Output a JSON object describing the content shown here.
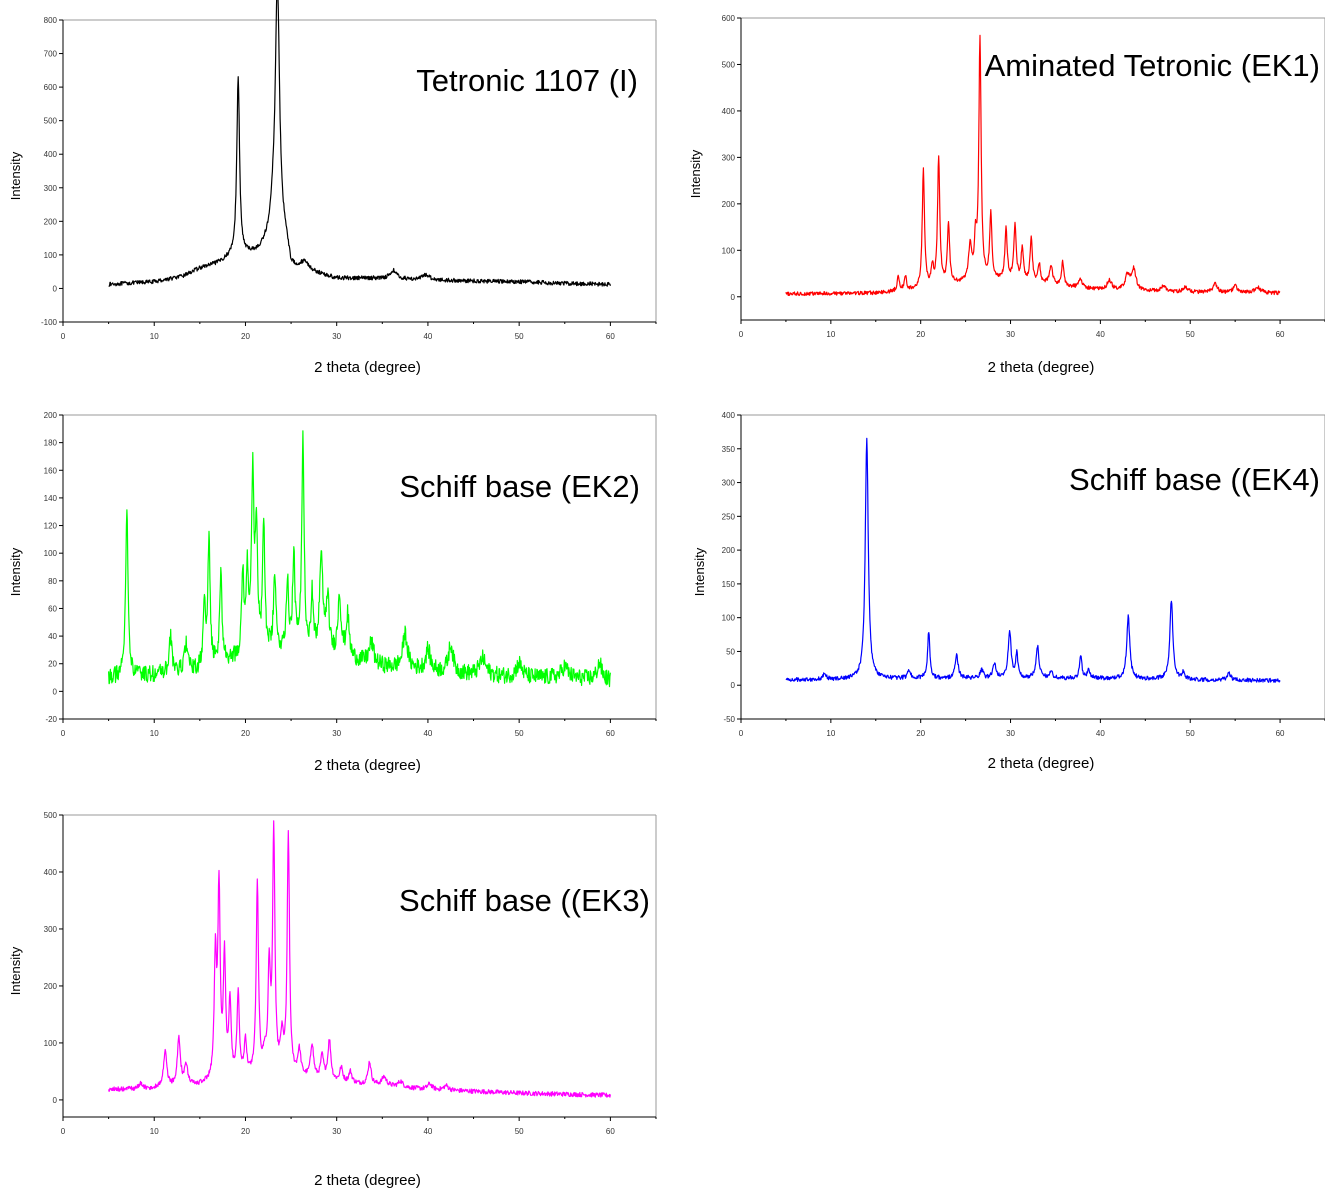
{
  "chart_data": [
    {
      "type": "line",
      "title": "Tetronic 1107 (I)",
      "xlabel": "2 theta (degree)",
      "ylabel": "Intensity",
      "xlim": [
        0,
        65
      ],
      "ylim": [
        -100,
        800
      ],
      "xticks": [
        0,
        10,
        20,
        30,
        40,
        50,
        60
      ],
      "yticks": [
        -100,
        0,
        100,
        200,
        300,
        400,
        500,
        600,
        700,
        800
      ],
      "color": "#000000",
      "series": [
        {
          "baseline": [
            [
              5,
              12
            ],
            [
              10,
              20
            ],
            [
              13,
              35
            ],
            [
              15,
              60
            ],
            [
              17,
              75
            ],
            [
              18.5,
              95
            ],
            [
              20,
              100
            ],
            [
              21.5,
              110
            ],
            [
              22.5,
              150
            ],
            [
              23,
              200
            ],
            [
              24.5,
              130
            ],
            [
              25,
              60
            ],
            [
              27,
              50
            ],
            [
              30,
              30
            ],
            [
              35,
              30
            ],
            [
              40,
              25
            ],
            [
              45,
              22
            ],
            [
              50,
              20
            ],
            [
              55,
              15
            ],
            [
              60,
              12
            ]
          ],
          "peaks": [
            [
              19.2,
              536,
              0.18
            ],
            [
              23.5,
              742,
              0.28
            ],
            [
              26.5,
              25,
              0.5
            ],
            [
              36.2,
              25,
              0.4
            ],
            [
              39.8,
              15,
              0.5
            ]
          ],
          "noise": 6
        }
      ]
    },
    {
      "type": "line",
      "title": "Aminated Tetronic (EK1)",
      "xlabel": "2 theta (degree)",
      "ylabel": "Intensity",
      "xlim": [
        0,
        65
      ],
      "ylim": [
        -50,
        600
      ],
      "xticks": [
        0,
        10,
        20,
        30,
        40,
        50,
        60
      ],
      "yticks": [
        0,
        100,
        200,
        300,
        400,
        500,
        600
      ],
      "color": "#ff0000",
      "series": [
        {
          "baseline": [
            [
              5,
              6
            ],
            [
              15,
              8
            ],
            [
              20,
              15
            ],
            [
              25,
              30
            ],
            [
              30,
              35
            ],
            [
              35,
              25
            ],
            [
              40,
              15
            ],
            [
              45,
              12
            ],
            [
              50,
              10
            ],
            [
              55,
              8
            ],
            [
              60,
              8
            ]
          ],
          "peaks": [
            [
              17.5,
              30,
              0.15
            ],
            [
              18.3,
              30,
              0.15
            ],
            [
              20.3,
              255,
              0.15
            ],
            [
              21.3,
              40,
              0.15
            ],
            [
              22,
              275,
              0.15
            ],
            [
              23.1,
              130,
              0.15
            ],
            [
              25.5,
              75,
              0.2
            ],
            [
              26.1,
              80,
              0.15
            ],
            [
              26.6,
              520,
              0.15
            ],
            [
              27.8,
              140,
              0.15
            ],
            [
              29.5,
              110,
              0.15
            ],
            [
              30.5,
              120,
              0.15
            ],
            [
              31.3,
              70,
              0.15
            ],
            [
              32.3,
              95,
              0.15
            ],
            [
              33.2,
              40,
              0.15
            ],
            [
              34.5,
              40,
              0.2
            ],
            [
              35.8,
              50,
              0.15
            ],
            [
              37.8,
              20,
              0.2
            ],
            [
              41,
              20,
              0.3
            ],
            [
              43,
              30,
              0.3
            ],
            [
              43.7,
              45,
              0.3
            ],
            [
              47,
              12,
              0.3
            ],
            [
              49.5,
              10,
              0.3
            ],
            [
              52.8,
              18,
              0.3
            ],
            [
              55,
              15,
              0.3
            ],
            [
              57.5,
              12,
              0.4
            ]
          ],
          "noise": 4
        }
      ]
    },
    {
      "type": "line",
      "title": "Schiff base (EK2)",
      "xlabel": "2 theta (degree)",
      "ylabel": "Intensity",
      "xlim": [
        0,
        65
      ],
      "ylim": [
        -20,
        200
      ],
      "xticks": [
        0,
        10,
        20,
        30,
        40,
        50,
        60
      ],
      "yticks": [
        -20,
        0,
        20,
        40,
        60,
        80,
        100,
        120,
        140,
        160,
        180,
        200
      ],
      "color": "#00ff00",
      "series": [
        {
          "baseline": [
            [
              5,
              10
            ],
            [
              10,
              12
            ],
            [
              15,
              15
            ],
            [
              20,
              25
            ],
            [
              25,
              30
            ],
            [
              30,
              25
            ],
            [
              35,
              18
            ],
            [
              40,
              15
            ],
            [
              45,
              12
            ],
            [
              50,
              10
            ],
            [
              55,
              10
            ],
            [
              60,
              8
            ]
          ],
          "peaks": [
            [
              7,
              125,
              0.15
            ],
            [
              11.8,
              25,
              0.2
            ],
            [
              13.5,
              20,
              0.2
            ],
            [
              15.5,
              45,
              0.15
            ],
            [
              16,
              90,
              0.15
            ],
            [
              17.3,
              65,
              0.15
            ],
            [
              19.7,
              60,
              0.15
            ],
            [
              20.2,
              60,
              0.15
            ],
            [
              20.8,
              130,
              0.15
            ],
            [
              21.2,
              90,
              0.15
            ],
            [
              22,
              90,
              0.15
            ],
            [
              23.2,
              55,
              0.15
            ],
            [
              24.6,
              50,
              0.15
            ],
            [
              25.3,
              65,
              0.15
            ],
            [
              26.3,
              152,
              0.15
            ],
            [
              27.3,
              40,
              0.15
            ],
            [
              28.3,
              70,
              0.2
            ],
            [
              29,
              40,
              0.2
            ],
            [
              30.3,
              45,
              0.2
            ],
            [
              31.2,
              30,
              0.2
            ],
            [
              33.8,
              15,
              0.3
            ],
            [
              37.5,
              25,
              0.3
            ],
            [
              40,
              15,
              0.3
            ],
            [
              42.5,
              20,
              0.3
            ],
            [
              46,
              12,
              0.4
            ],
            [
              50,
              10,
              0.4
            ],
            [
              55,
              8,
              0.4
            ],
            [
              58.8,
              12,
              0.3
            ]
          ],
          "noise": 6
        }
      ]
    },
    {
      "type": "line",
      "title": "Schiff base ((EK4)",
      "xlabel": "2 theta (degree)",
      "ylabel": "Intensity",
      "xlim": [
        0,
        65
      ],
      "ylim": [
        -50,
        400
      ],
      "xticks": [
        0,
        10,
        20,
        30,
        40,
        50,
        60
      ],
      "yticks": [
        -50,
        0,
        50,
        100,
        150,
        200,
        250,
        300,
        350,
        400
      ],
      "color": "#0000ff",
      "series": [
        {
          "baseline": [
            [
              5,
              8
            ],
            [
              20,
              10
            ],
            [
              40,
              10
            ],
            [
              50,
              8
            ],
            [
              60,
              7
            ]
          ],
          "peaks": [
            [
              9.3,
              8,
              0.2
            ],
            [
              14,
              355,
              0.2
            ],
            [
              18.7,
              12,
              0.2
            ],
            [
              20.9,
              70,
              0.15
            ],
            [
              24,
              35,
              0.2
            ],
            [
              26.8,
              12,
              0.2
            ],
            [
              28.2,
              22,
              0.2
            ],
            [
              29.9,
              70,
              0.2
            ],
            [
              30.7,
              35,
              0.15
            ],
            [
              33,
              48,
              0.2
            ],
            [
              34.5,
              10,
              0.2
            ],
            [
              37.8,
              35,
              0.15
            ],
            [
              38.7,
              12,
              0.2
            ],
            [
              43.1,
              92,
              0.2
            ],
            [
              47.9,
              118,
              0.2
            ],
            [
              49.2,
              10,
              0.2
            ],
            [
              54.3,
              12,
              0.2
            ]
          ],
          "noise": 3
        }
      ]
    },
    {
      "type": "line",
      "title": "Schiff base ((EK3)",
      "xlabel": "2 theta (degree)",
      "ylabel": "Intensity",
      "xlim": [
        0,
        65
      ],
      "ylim": [
        -30,
        500
      ],
      "xticks": [
        0,
        10,
        20,
        30,
        40,
        50,
        60
      ],
      "yticks": [
        0,
        100,
        200,
        300,
        400,
        500
      ],
      "color": "#ff00ff",
      "series": [
        {
          "baseline": [
            [
              5,
              18
            ],
            [
              10,
              20
            ],
            [
              15,
              25
            ],
            [
              20,
              40
            ],
            [
              25,
              40
            ],
            [
              30,
              30
            ],
            [
              35,
              25
            ],
            [
              40,
              18
            ],
            [
              45,
              15
            ],
            [
              50,
              12
            ],
            [
              55,
              10
            ],
            [
              60,
              8
            ]
          ],
          "peaks": [
            [
              8.5,
              10,
              0.2
            ],
            [
              11.2,
              65,
              0.2
            ],
            [
              12.7,
              85,
              0.2
            ],
            [
              13.5,
              35,
              0.2
            ],
            [
              16.7,
              210,
              0.15
            ],
            [
              17.1,
              330,
              0.15
            ],
            [
              17.7,
              210,
              0.15
            ],
            [
              18.3,
              130,
              0.15
            ],
            [
              19.2,
              145,
              0.15
            ],
            [
              20,
              60,
              0.15
            ],
            [
              21.3,
              335,
              0.15
            ],
            [
              22.1,
              30,
              0.2
            ],
            [
              22.6,
              180,
              0.15
            ],
            [
              23.1,
              420,
              0.15
            ],
            [
              24,
              60,
              0.2
            ],
            [
              24.7,
              420,
              0.15
            ],
            [
              25.9,
              45,
              0.2
            ],
            [
              27.3,
              60,
              0.2
            ],
            [
              28.4,
              40,
              0.2
            ],
            [
              29.2,
              70,
              0.2
            ],
            [
              30.5,
              25,
              0.2
            ],
            [
              31.5,
              20,
              0.2
            ],
            [
              33.6,
              40,
              0.2
            ],
            [
              35.2,
              15,
              0.3
            ],
            [
              37,
              10,
              0.3
            ],
            [
              40.2,
              10,
              0.3
            ],
            [
              42,
              8,
              0.3
            ]
          ],
          "noise": 4
        }
      ]
    }
  ]
}
